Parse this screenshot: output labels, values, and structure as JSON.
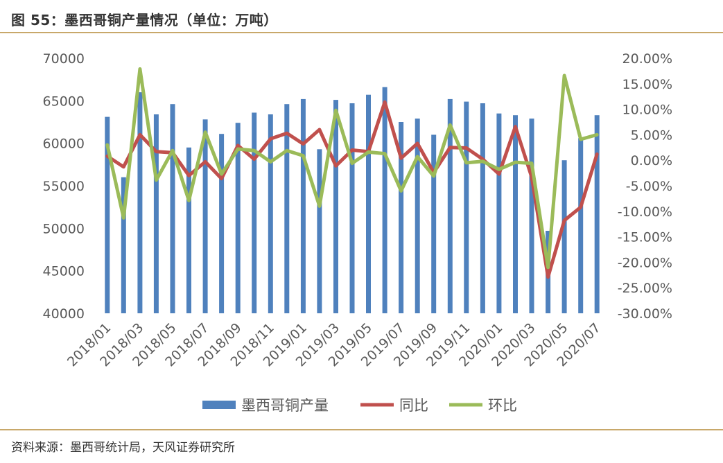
{
  "header": {
    "title": "图 55：墨西哥铜产量情况（单位：万吨）"
  },
  "footer": {
    "source": "资料来源：墨西哥统计局，天风证券研究所"
  },
  "chart_data": {
    "type": "bar",
    "categories": [
      "2018/01",
      "2018/02",
      "2018/03",
      "2018/04",
      "2018/05",
      "2018/06",
      "2018/07",
      "2018/08",
      "2018/09",
      "2018/10",
      "2018/11",
      "2018/12",
      "2019/01",
      "2019/02",
      "2019/03",
      "2019/04",
      "2019/05",
      "2019/06",
      "2019/07",
      "2019/08",
      "2019/09",
      "2019/10",
      "2019/11",
      "2019/12",
      "2020/01",
      "2020/02",
      "2020/03",
      "2020/04",
      "2020/05",
      "2020/06",
      "2020/07"
    ],
    "x_tick_labels": [
      "2018/01",
      "2018/03",
      "2018/05",
      "2018/07",
      "2018/09",
      "2018/11",
      "2019/01",
      "2019/03",
      "2019/05",
      "2019/07",
      "2019/09",
      "2019/11",
      "2020/01",
      "2020/03",
      "2020/05",
      "2020/07"
    ],
    "series": [
      {
        "name": "墨西哥铜产量",
        "type": "bar",
        "axis": "left",
        "color": "#4f81bd",
        "values": [
          63100,
          56000,
          66000,
          63400,
          64600,
          59500,
          62800,
          61100,
          62400,
          63600,
          63400,
          64600,
          65200,
          59300,
          65100,
          64700,
          65700,
          66600,
          62500,
          62900,
          61000,
          65200,
          64900,
          64700,
          63500,
          63300,
          62900,
          49700,
          58000,
          60600,
          63300
        ]
      },
      {
        "name": "同比",
        "type": "line",
        "axis": "right",
        "color": "#c0504d",
        "values": [
          0.8,
          -1.3,
          5.0,
          1.7,
          1.5,
          -3.0,
          -0.3,
          -3.6,
          2.9,
          0.2,
          4.2,
          5.3,
          3.2,
          6.0,
          -1.1,
          2.0,
          1.7,
          11.4,
          0.4,
          3.3,
          -2.4,
          2.5,
          2.4,
          0.2,
          -2.7,
          6.6,
          -3.3,
          -22.9,
          -11.8,
          -9.2,
          1.2
        ]
      },
      {
        "name": "环比",
        "type": "line",
        "axis": "right",
        "color": "#9bbb59",
        "values": [
          3.0,
          -11.3,
          17.9,
          -3.9,
          1.9,
          -7.9,
          5.5,
          -2.7,
          2.2,
          1.9,
          -0.3,
          1.9,
          0.9,
          -9.0,
          9.8,
          -0.6,
          1.6,
          1.3,
          -6.0,
          0.7,
          -3.1,
          6.9,
          -0.5,
          -0.2,
          -1.8,
          -0.4,
          -0.6,
          -21.0,
          16.6,
          4.1,
          5.0
        ]
      }
    ],
    "y_left": {
      "lim": [
        40000,
        70000
      ],
      "ticks": [
        "40000",
        "45000",
        "50000",
        "55000",
        "60000",
        "65000",
        "70000"
      ]
    },
    "y_right": {
      "lim": [
        -30,
        20
      ],
      "ticks": [
        "-30.00%",
        "-25.00%",
        "-20.00%",
        "-15.00%",
        "-10.00%",
        "-5.00%",
        "0.00%",
        "5.00%",
        "10.00%",
        "15.00%",
        "20.00%"
      ]
    },
    "grid": false,
    "legend": {
      "position": "bottom",
      "items": [
        "墨西哥铜产量",
        "同比",
        "环比"
      ]
    }
  }
}
